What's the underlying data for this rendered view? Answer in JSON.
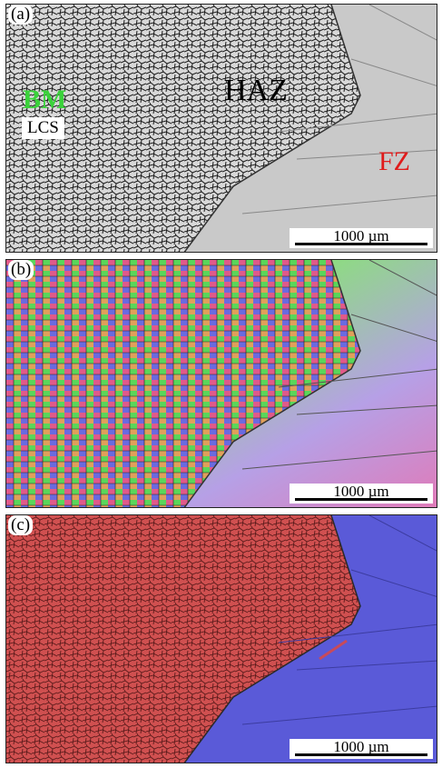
{
  "panels": [
    {
      "label": "(a)",
      "scale_bar": "1000 µm"
    },
    {
      "label": "(b)",
      "scale_bar": "1000 µm"
    },
    {
      "label": "(c)",
      "scale_bar": "1000 µm"
    }
  ],
  "zone_labels": {
    "bm": "BM",
    "lcs": "LCS",
    "haz": "HAZ",
    "fz": "FZ"
  },
  "colors": {
    "bm_label": "#3ad23a",
    "fz_label": "#e01b1b",
    "phase_red": "#d05050",
    "phase_blue": "#5a5ad8"
  }
}
